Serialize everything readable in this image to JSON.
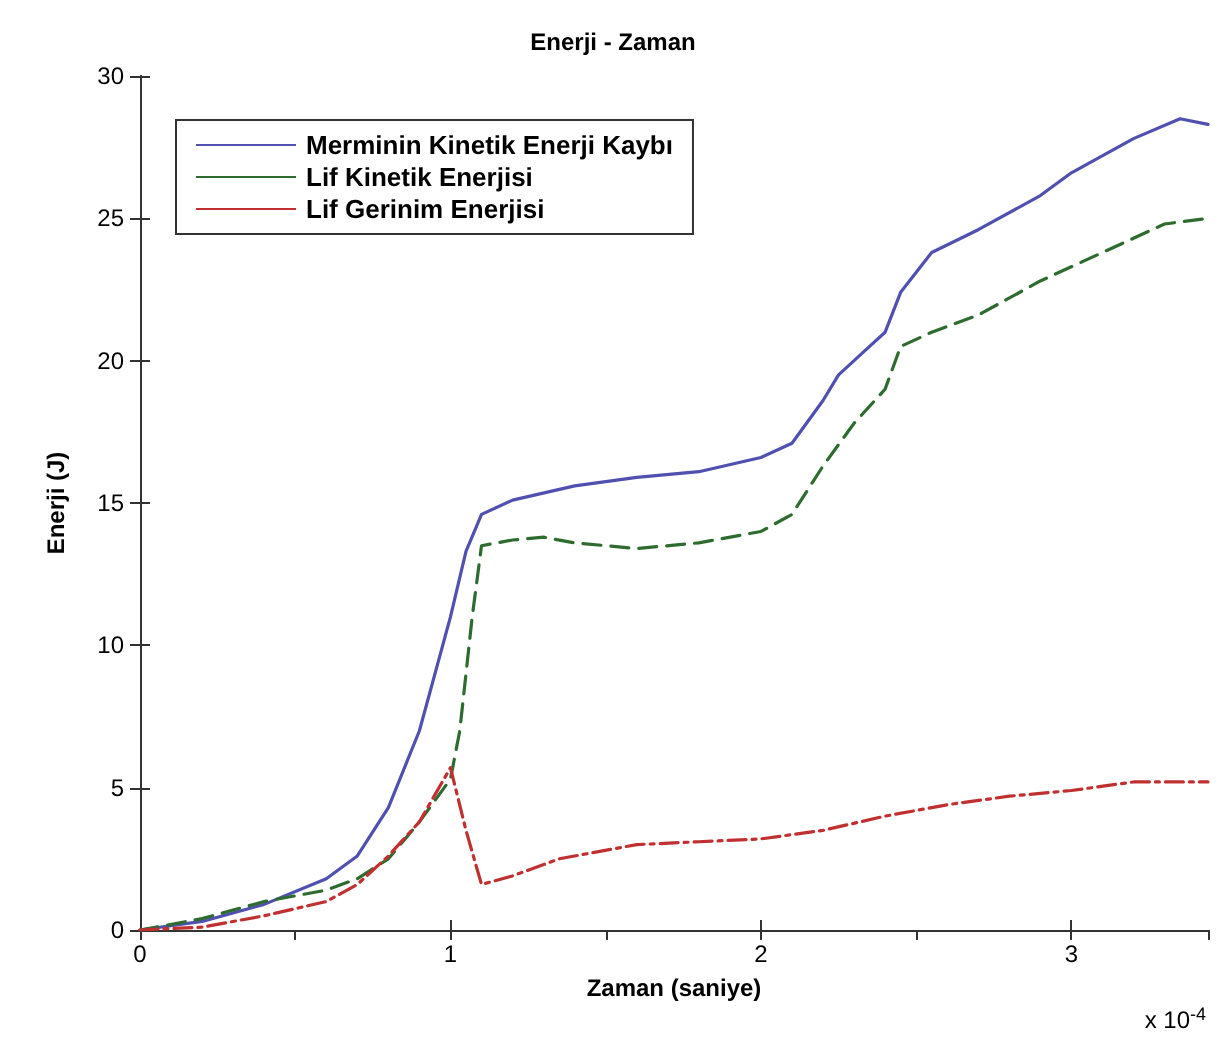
{
  "chart_data": {
    "type": "line",
    "title": "Enerji - Zaman",
    "xlabel": "Zaman (saniye)",
    "ylabel": "Enerji (J)",
    "annotations": [
      "x 10$^{-4}$"
    ],
    "xlim": [
      0,
      3.44
    ],
    "xticks": [
      0,
      1,
      2,
      3
    ],
    "ylim": [
      0,
      30
    ],
    "yticks": [
      0,
      5,
      10,
      15,
      20,
      25,
      30
    ],
    "grid": false,
    "legend": "top left",
    "marker": "none",
    "series": [
      {
        "name": "Merminin Kinetik Enerji Kaybı",
        "color": "#5050b0",
        "line_style": "solid",
        "x": [
          0,
          0.2,
          0.4,
          0.6,
          0.7,
          0.8,
          0.9,
          0.95,
          1.0,
          1.05,
          1.1,
          1.2,
          1.4,
          1.6,
          1.8,
          2.0,
          2.1,
          2.2,
          2.25,
          2.35,
          2.4,
          2.45,
          2.55,
          2.7,
          2.9,
          3.0,
          3.2,
          3.35,
          3.44
        ],
        "values": [
          0,
          0.3,
          0.9,
          1.8,
          2.6,
          4.3,
          7,
          9,
          11,
          13.3,
          14.6,
          15.1,
          15.6,
          15.9,
          16.1,
          16.6,
          17.1,
          18.6,
          19.5,
          20.5,
          21,
          22.4,
          23.8,
          24.6,
          25.8,
          26.6,
          27.8,
          28.5,
          28.3
        ]
      },
      {
        "name": "Lif Kinetik Enerjisi",
        "color": "#2e6b2e",
        "line_style": "dashed",
        "x": [
          0,
          0.2,
          0.4,
          0.6,
          0.7,
          0.8,
          0.9,
          1.0,
          1.03,
          1.07,
          1.1,
          1.2,
          1.3,
          1.4,
          1.6,
          1.8,
          2.0,
          2.1,
          2.2,
          2.3,
          2.4,
          2.45,
          2.55,
          2.7,
          2.9,
          3.1,
          3.3,
          3.44
        ],
        "values": [
          0,
          0.4,
          1.0,
          1.4,
          1.8,
          2.5,
          3.8,
          5.3,
          7,
          11,
          13.5,
          13.7,
          13.8,
          13.6,
          13.4,
          13.6,
          14.0,
          14.6,
          16.3,
          17.8,
          19,
          20.5,
          21,
          21.6,
          22.8,
          23.8,
          24.8,
          25
        ]
      },
      {
        "name": "Lif Gerinim Enerjisi",
        "color": "#c03030",
        "line_style": "dotted",
        "x": [
          0,
          0.2,
          0.4,
          0.6,
          0.7,
          0.8,
          0.9,
          1.0,
          1.05,
          1.1,
          1.2,
          1.35,
          1.6,
          1.8,
          2.0,
          2.2,
          2.4,
          2.6,
          2.8,
          3.0,
          3.2,
          3.44
        ],
        "values": [
          0,
          0.1,
          0.5,
          1.0,
          1.6,
          2.6,
          3.8,
          5.7,
          3.5,
          1.6,
          1.9,
          2.5,
          3.0,
          3.1,
          3.2,
          3.5,
          4.0,
          4.4,
          4.7,
          4.9,
          5.2,
          5.2
        ]
      }
    ]
  }
}
